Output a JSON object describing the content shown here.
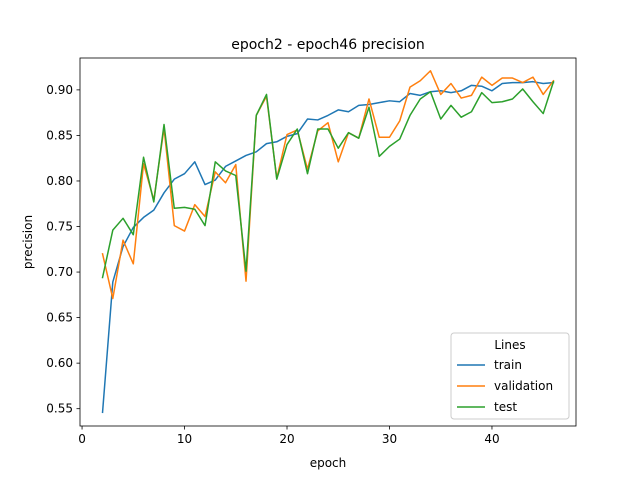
{
  "chart_data": {
    "type": "line",
    "title": "epoch2 - epoch46 precision",
    "xlabel": "epoch",
    "ylabel": "precision",
    "xlim": [
      -0.2,
      48.2
    ],
    "ylim": [
      0.531,
      0.935
    ],
    "xticks": [
      0,
      10,
      20,
      30,
      40
    ],
    "yticks": [
      0.55,
      0.6,
      0.65,
      0.7,
      0.75,
      0.8,
      0.85,
      0.9
    ],
    "xtick_labels": [
      "0",
      "10",
      "20",
      "30",
      "40"
    ],
    "ytick_labels": [
      "0.55",
      "0.60",
      "0.65",
      "0.70",
      "0.75",
      "0.80",
      "0.85",
      "0.90"
    ],
    "grid": false,
    "legend": {
      "title": "Lines",
      "placement": "lower-right"
    },
    "x": [
      2,
      3,
      4,
      5,
      6,
      7,
      8,
      9,
      10,
      11,
      12,
      13,
      14,
      15,
      16,
      17,
      18,
      19,
      20,
      21,
      22,
      23,
      24,
      25,
      26,
      27,
      28,
      29,
      30,
      31,
      32,
      33,
      34,
      35,
      36,
      37,
      38,
      39,
      40,
      41,
      42,
      43,
      44,
      45,
      46
    ],
    "series": [
      {
        "name": "train",
        "color": "#1f77b4",
        "values": [
          0.546,
          0.689,
          0.728,
          0.749,
          0.76,
          0.768,
          0.787,
          0.802,
          0.808,
          0.821,
          0.796,
          0.801,
          0.816,
          0.822,
          0.828,
          0.832,
          0.841,
          0.843,
          0.849,
          0.852,
          0.868,
          0.867,
          0.872,
          0.878,
          0.876,
          0.883,
          0.884,
          0.886,
          0.888,
          0.887,
          0.896,
          0.894,
          0.898,
          0.899,
          0.897,
          0.899,
          0.905,
          0.904,
          0.899,
          0.907,
          0.908,
          0.908,
          0.909,
          0.907,
          0.908
        ]
      },
      {
        "name": "validation",
        "color": "#ff7f0e",
        "values": [
          0.72,
          0.671,
          0.735,
          0.709,
          0.819,
          0.779,
          0.858,
          0.751,
          0.745,
          0.774,
          0.761,
          0.81,
          0.798,
          0.818,
          0.69,
          0.872,
          0.893,
          0.803,
          0.851,
          0.856,
          0.813,
          0.855,
          0.864,
          0.821,
          0.853,
          0.847,
          0.89,
          0.848,
          0.848,
          0.866,
          0.903,
          0.91,
          0.921,
          0.895,
          0.907,
          0.891,
          0.894,
          0.914,
          0.905,
          0.913,
          0.913,
          0.908,
          0.914,
          0.895,
          0.91
        ]
      },
      {
        "name": "test",
        "color": "#2ca02c",
        "values": [
          0.694,
          0.746,
          0.759,
          0.741,
          0.826,
          0.777,
          0.862,
          0.77,
          0.771,
          0.769,
          0.751,
          0.821,
          0.811,
          0.806,
          0.701,
          0.872,
          0.895,
          0.802,
          0.84,
          0.857,
          0.808,
          0.857,
          0.857,
          0.836,
          0.853,
          0.847,
          0.881,
          0.827,
          0.838,
          0.846,
          0.872,
          0.89,
          0.898,
          0.868,
          0.883,
          0.87,
          0.876,
          0.897,
          0.886,
          0.887,
          0.89,
          0.901,
          0.887,
          0.874,
          0.909
        ]
      }
    ]
  }
}
